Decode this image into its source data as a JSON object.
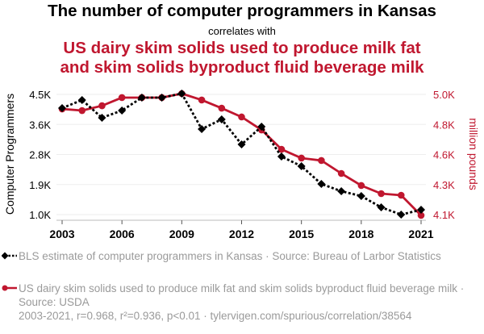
{
  "header": {
    "title": "The number of computer programmers in Kansas",
    "subtitle": "correlates with",
    "title2_line1": "US dairy skim solids used to produce milk fat",
    "title2_line2": "and skim solids byproduct fluid beverage milk"
  },
  "legend": {
    "series1": "BLS estimate of computer programmers in Kansas · Source: Bureau of Larbor Statistics",
    "series2": "US dairy skim solids used to produce milk fat and skim solids byproduct fluid beverage milk · Source: USDA"
  },
  "footer": "2003-2021, r=0.968, r²=0.936, p<0.01 · tylervigen.com/spurious/correlation/38564",
  "colors": {
    "series1": "#000000",
    "series2": "#c0172f",
    "legend_text": "#9a9a9a"
  },
  "chart_data": {
    "type": "line",
    "x": [
      2003,
      2004,
      2005,
      2006,
      2007,
      2008,
      2009,
      2010,
      2011,
      2012,
      2013,
      2014,
      2015,
      2016,
      2017,
      2018,
      2019,
      2020,
      2021
    ],
    "xticks": [
      "2003",
      "2006",
      "2009",
      "2012",
      "2015",
      "2018",
      "2021"
    ],
    "xtick_values": [
      2003,
      2006,
      2009,
      2012,
      2015,
      2018,
      2021
    ],
    "xlim": [
      2003,
      2021
    ],
    "y_left": {
      "label": "Computer Programmers",
      "lim": [
        1000,
        4500
      ],
      "ticks": [
        "1.0K",
        "1.9K",
        "2.8K",
        "3.6K",
        "4.5K"
      ],
      "tick_values": [
        1000,
        1875,
        2750,
        3625,
        4500
      ]
    },
    "y_right": {
      "label": "million pounds",
      "lim": [
        4100,
        5000
      ],
      "ticks": [
        "4.1K",
        "4.3K",
        "4.6K",
        "4.8K",
        "5.0K"
      ],
      "tick_values": [
        4100,
        4325,
        4550,
        4775,
        5000
      ]
    },
    "series": [
      {
        "name": "BLS estimate of computer programmers in Kansas",
        "axis": "left",
        "style": "dotted-diamond",
        "values": [
          4100,
          4336,
          3819,
          4030,
          4406,
          4406,
          4524,
          3490,
          3772,
          3044,
          3560,
          2691,
          2409,
          1893,
          1681,
          1540,
          1211,
          1000,
          1141
        ]
      },
      {
        "name": "US dairy skim solids used to produce milk fat and skim solids byproduct fluid beverage milk",
        "axis": "right",
        "style": "solid-circle",
        "values": [
          4891,
          4879,
          4915,
          4976,
          4976,
          4976,
          5006,
          4958,
          4897,
          4831,
          4734,
          4589,
          4523,
          4505,
          4408,
          4318,
          4257,
          4245,
          4094
        ]
      }
    ],
    "grid": true
  }
}
